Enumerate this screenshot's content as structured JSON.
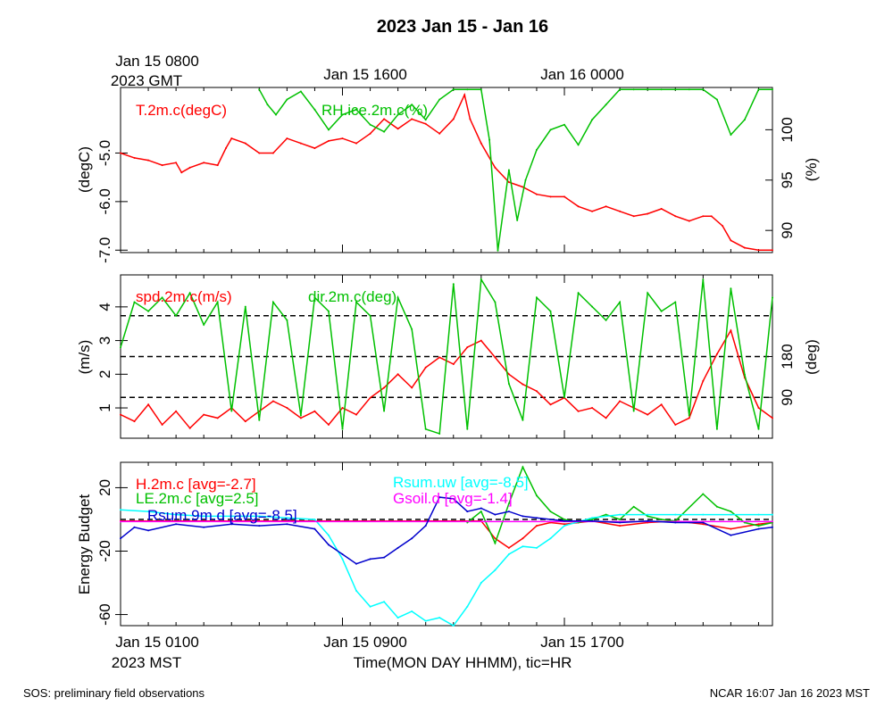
{
  "title": "2023 Jan 15 - Jan 16",
  "top_axis": {
    "gmt_tick_labels": [
      "Jan 15 0800",
      "Jan 15 1600",
      "Jan 16 0000"
    ],
    "timezone_label": "2023 GMT"
  },
  "bottom_axis": {
    "tick_labels": [
      "Jan 15 0100",
      "Jan 15 0900",
      "Jan 15 1700"
    ],
    "timezone_label": "2023 MST",
    "xlabel": "Time(MON DAY HHMM), tic=HR"
  },
  "footer": {
    "left": "SOS: preliminary field observations",
    "right": "NCAR 16:07 Jan 16 2023 MST"
  },
  "colors": {
    "red": "#ff0000",
    "green": "#00c000",
    "cyan": "#00ffff",
    "blue": "#0000cc",
    "magenta": "#ff00ff",
    "black": "#000000"
  },
  "chart_data": [
    {
      "type": "line",
      "panel": "temperature-humidity",
      "xlim_hours_mst": [
        0,
        23.5
      ],
      "left_axis": {
        "label": "(degC)",
        "ylim": [
          -7.05,
          -3.65
        ],
        "ticks": [
          -7.0,
          -6.0,
          -5.0
        ],
        "tick_labels": [
          "-7.0",
          "-6.0",
          "-5.0"
        ]
      },
      "right_axis": {
        "label": "(%)",
        "ylim": [
          87.8,
          104.2
        ],
        "ticks": [
          90,
          95,
          100
        ],
        "tick_labels": [
          "90",
          "95",
          "100"
        ]
      },
      "series": [
        {
          "name": "T.2m.c(degC)",
          "legend": "T.2m.c(degC)",
          "color": "red",
          "axis": "left",
          "x": [
            0,
            0.5,
            1,
            1.5,
            2,
            2.2,
            2.5,
            3,
            3.5,
            3.8,
            4,
            4.5,
            5,
            5.5,
            6,
            6.5,
            7,
            7.5,
            8,
            8.5,
            9,
            9.5,
            10,
            10.5,
            11,
            11.5,
            12,
            12.4,
            12.6,
            13,
            13.5,
            14,
            14.5,
            15,
            15.5,
            16,
            16.5,
            17,
            17.5,
            18,
            18.5,
            19,
            19.5,
            20,
            20.5,
            21,
            21.3,
            21.7,
            22,
            22.5,
            23,
            23.5
          ],
          "y": [
            -5.0,
            -5.1,
            -5.15,
            -5.25,
            -5.2,
            -5.4,
            -5.3,
            -5.2,
            -5.25,
            -4.9,
            -4.7,
            -4.8,
            -5.0,
            -5.0,
            -4.7,
            -4.8,
            -4.9,
            -4.75,
            -4.7,
            -4.8,
            -4.6,
            -4.3,
            -4.5,
            -4.3,
            -4.4,
            -4.6,
            -4.3,
            -3.8,
            -4.3,
            -4.8,
            -5.3,
            -5.6,
            -5.7,
            -5.85,
            -5.9,
            -5.9,
            -6.1,
            -6.2,
            -6.1,
            -6.2,
            -6.3,
            -6.25,
            -6.15,
            -6.3,
            -6.4,
            -6.3,
            -6.3,
            -6.5,
            -6.8,
            -6.95,
            -7.0,
            -7.0
          ]
        },
        {
          "name": "RH.ice.2m.c(%)",
          "legend": "RH.ice.2m.c(%)",
          "color": "green",
          "axis": "right",
          "x": [
            5,
            5.3,
            5.6,
            6,
            6.5,
            7,
            7.5,
            8,
            8.5,
            9,
            9.5,
            10,
            10.5,
            11,
            11.5,
            12,
            12.5,
            13,
            13.3,
            13.6,
            14,
            14.3,
            14.6,
            15,
            15.5,
            16,
            16.5,
            17,
            17.5,
            18,
            18.5,
            19,
            19.5,
            20,
            20.5,
            21,
            21.5,
            22,
            22.5,
            23,
            23.5
          ],
          "y": [
            104,
            102.5,
            101.5,
            103,
            103.8,
            102,
            100,
            101.5,
            102,
            100.5,
            99.8,
            101.5,
            102.5,
            101,
            103,
            104,
            104,
            104,
            99,
            88,
            96,
            91,
            95,
            98,
            100,
            100.5,
            98.5,
            101,
            102.5,
            104,
            104,
            104,
            104,
            104,
            104,
            104,
            103,
            99.5,
            101,
            104,
            104
          ]
        }
      ]
    },
    {
      "type": "line",
      "panel": "wind",
      "xlim_hours_mst": [
        0,
        23.5
      ],
      "left_axis": {
        "label": "(m/s)",
        "ylim": [
          0.1,
          4.95
        ],
        "ticks": [
          1,
          2,
          3,
          4
        ],
        "tick_labels": [
          "1",
          "2",
          "3",
          "4"
        ]
      },
      "right_axis": {
        "label": "(deg)",
        "ylim": [
          0,
          360
        ],
        "ticks": [
          90,
          180
        ],
        "tick_labels": [
          "90",
          "180"
        ]
      },
      "reference_lines_deg": [
        90,
        180,
        270
      ],
      "series": [
        {
          "name": "spd.2m.c(m/s)",
          "legend": "spd.2m.c(m/s)",
          "color": "red",
          "axis": "left",
          "x": [
            0,
            0.5,
            1,
            1.5,
            2,
            2.5,
            3,
            3.5,
            4,
            4.5,
            5,
            5.5,
            6,
            6.5,
            7,
            7.5,
            8,
            8.5,
            9,
            9.5,
            10,
            10.5,
            11,
            11.5,
            12,
            12.5,
            13,
            13.5,
            14,
            14.5,
            15,
            15.5,
            16,
            16.5,
            17,
            17.5,
            18,
            18.5,
            19,
            19.5,
            20,
            20.5,
            21,
            21.5,
            22,
            22.5,
            23,
            23.5
          ],
          "y": [
            0.8,
            0.6,
            1.1,
            0.5,
            0.9,
            0.4,
            0.8,
            0.7,
            1.0,
            0.6,
            0.9,
            1.2,
            1.0,
            0.7,
            0.9,
            0.5,
            1.0,
            0.8,
            1.3,
            1.6,
            2.0,
            1.6,
            2.2,
            2.5,
            2.3,
            2.8,
            3.0,
            2.5,
            2.0,
            1.7,
            1.5,
            1.1,
            1.3,
            0.9,
            1.0,
            0.7,
            1.2,
            1.0,
            0.8,
            1.1,
            0.5,
            0.7,
            1.8,
            2.6,
            3.3,
            1.9,
            1.0,
            0.7
          ]
        },
        {
          "name": "dir.2m.c(deg)",
          "legend": "dir.2m.c(deg)",
          "color": "green",
          "axis": "right",
          "x": [
            0,
            0.5,
            1,
            1.5,
            2,
            2.5,
            3,
            3.5,
            4,
            4.5,
            5,
            5.5,
            6,
            6.5,
            7,
            7.5,
            8,
            8.5,
            9,
            9.5,
            10,
            10.5,
            11,
            11.5,
            12,
            12.5,
            13,
            13.5,
            14,
            14.5,
            15,
            15.5,
            16,
            16.5,
            17,
            17.5,
            18,
            18.5,
            19,
            19.5,
            20,
            20.5,
            21,
            21.5,
            22,
            22.5,
            23,
            23.5
          ],
          "y": [
            200,
            300,
            280,
            310,
            270,
            320,
            250,
            300,
            60,
            290,
            40,
            300,
            260,
            50,
            310,
            280,
            20,
            300,
            270,
            60,
            310,
            240,
            20,
            10,
            340,
            20,
            350,
            300,
            120,
            40,
            310,
            280,
            90,
            320,
            290,
            260,
            300,
            60,
            320,
            280,
            300,
            50,
            350,
            20,
            330,
            140,
            20,
            310
          ]
        }
      ]
    },
    {
      "type": "line",
      "panel": "energy-budget",
      "xlim_hours_mst": [
        0,
        23.5
      ],
      "ylabel": "Energy Budget",
      "ylim": [
        -67,
        36
      ],
      "ticks": [
        -60,
        -20,
        20
      ],
      "tick_labels": [
        "-60",
        "-20",
        "20"
      ],
      "reference_line": 0,
      "series": [
        {
          "name": "H.2m.c",
          "legend": "H.2m.c [avg=-2.7]",
          "color": "red",
          "x": [
            0,
            1,
            2,
            3,
            4,
            5,
            6,
            7,
            8,
            9,
            10,
            11,
            12,
            13,
            13.5,
            14,
            14.5,
            15,
            15.5,
            16,
            17,
            18,
            19,
            20,
            21,
            22,
            23,
            23.5
          ],
          "y": [
            -1,
            -1,
            -1,
            -1,
            -1,
            -1,
            -1,
            -1,
            -1,
            -1,
            -1,
            -1,
            -1,
            -1,
            -12,
            -18,
            -12,
            -4,
            -2,
            -3,
            -1,
            -4,
            -2,
            -1,
            -3,
            -6,
            -3,
            -2
          ]
        },
        {
          "name": "LE.2m.c",
          "legend": "LE.2m.c [avg=2.5]",
          "color": "green",
          "x": [
            12.5,
            13,
            13.5,
            14,
            14.5,
            15,
            15.5,
            16,
            16.5,
            17,
            17.5,
            18,
            18.5,
            19,
            19.5,
            20,
            21,
            21.5,
            22,
            22.5,
            23,
            23.5
          ],
          "y": [
            -2,
            5,
            -15,
            10,
            33,
            15,
            5,
            0,
            -2,
            0,
            3,
            0,
            8,
            2,
            0,
            -1,
            16,
            8,
            5,
            -2,
            -4,
            -2
          ]
        },
        {
          "name": "Rsum.uw",
          "legend": "Rsum.uw [avg=-8.5]",
          "color": "cyan",
          "x": [
            0,
            1,
            2,
            3,
            4,
            5,
            6,
            7,
            7.5,
            8,
            8.5,
            9,
            9.5,
            10,
            10.5,
            11,
            11.5,
            12,
            12.5,
            13,
            13.5,
            14,
            14.5,
            15,
            15.5,
            16,
            17,
            18,
            19,
            20,
            21,
            22,
            23,
            23.5
          ],
          "y": [
            6,
            5,
            3,
            2,
            2,
            2,
            1,
            0,
            -10,
            -25,
            -45,
            -55,
            -52,
            -62,
            -58,
            -64,
            -62,
            -68,
            -55,
            -40,
            -32,
            -22,
            -17,
            -18,
            -12,
            -4,
            1,
            3,
            3,
            3,
            3,
            3,
            3,
            3
          ]
        },
        {
          "name": "Gsoil.d",
          "legend": "Gsoil.d [avg=-1.4]",
          "color": "magenta",
          "x": [
            0,
            23.5
          ],
          "y": [
            -1.4,
            -1.4
          ]
        },
        {
          "name": "Rsum.9m.d",
          "legend": "Rsum.9m.d [avg=-8.5]",
          "color": "blue",
          "x": [
            0,
            0.5,
            1,
            2,
            3,
            4,
            5,
            6,
            7,
            7.5,
            8,
            8.5,
            9,
            9.5,
            10,
            10.5,
            11,
            11.5,
            12,
            12.5,
            13,
            13.5,
            14,
            14.5,
            15,
            16,
            17,
            18,
            19,
            20,
            21,
            22,
            23,
            23.5
          ],
          "y": [
            -12,
            -5,
            -7,
            -3,
            -5,
            -3,
            -4,
            -3,
            -6,
            -16,
            -22,
            -28,
            -25,
            -24,
            -18,
            -12,
            -4,
            14,
            13,
            5,
            7,
            3,
            5,
            2,
            1,
            -1,
            -1,
            -2,
            -1,
            -2,
            -2,
            -10,
            -6,
            -5
          ]
        }
      ]
    }
  ]
}
